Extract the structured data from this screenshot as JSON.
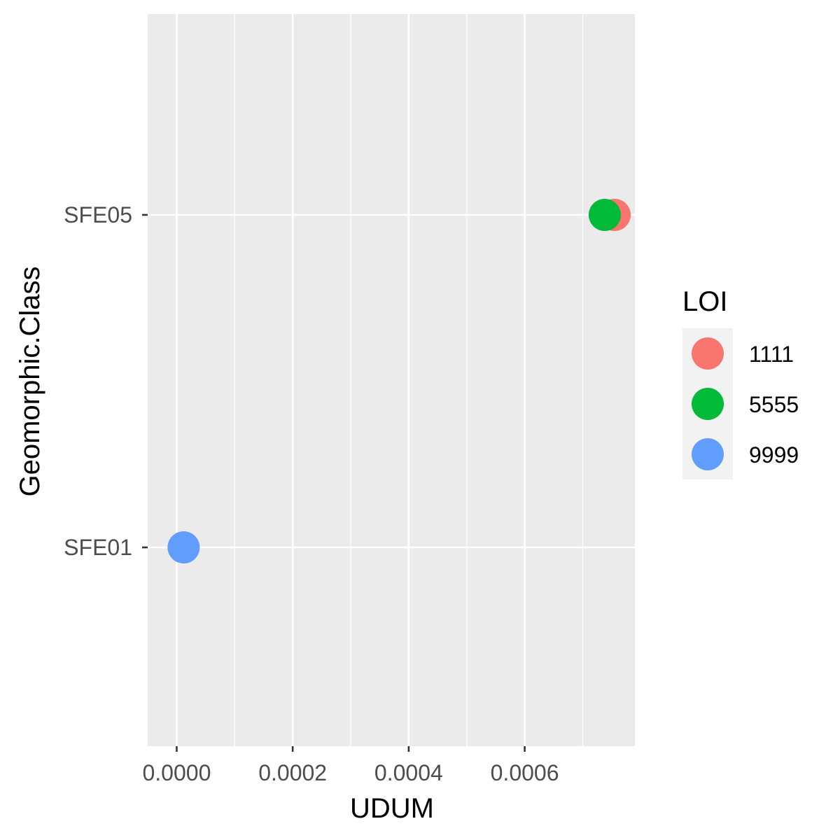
{
  "chart_data": {
    "type": "scatter",
    "xlabel": "UDUM",
    "ylabel": "Geomorphic.Class",
    "categories": [
      "SFE01",
      "SFE05"
    ],
    "xlim": [
      -5e-05,
      0.00079
    ],
    "x_ticks": [
      0,
      0.0002,
      0.0004,
      0.0006
    ],
    "x_tick_labels": [
      "0.0000",
      "0.0002",
      "0.0004",
      "0.0006"
    ],
    "grid": true,
    "legend": {
      "title": "LOI",
      "placement": "right",
      "entries": [
        "1111",
        "5555",
        "9999"
      ]
    },
    "series": [
      {
        "name": "1111",
        "color": "#F8766D",
        "points": [
          {
            "x": 0.000755,
            "y": "SFE05"
          }
        ]
      },
      {
        "name": "5555",
        "color": "#00BA38",
        "points": [
          {
            "x": 0.000738,
            "y": "SFE05"
          }
        ]
      },
      {
        "name": "9999",
        "color": "#619CFF",
        "points": [
          {
            "x": 1.2e-05,
            "y": "SFE01"
          }
        ]
      }
    ]
  }
}
